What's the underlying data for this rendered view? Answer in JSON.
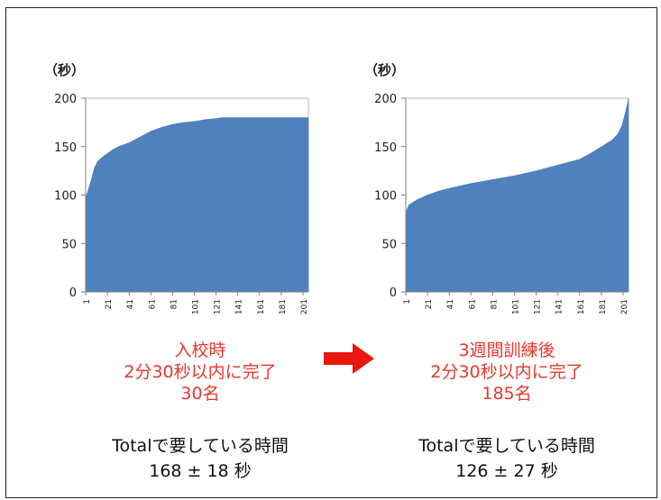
{
  "chart_data": [
    {
      "type": "area",
      "unit_label": "（秒）",
      "ylim": [
        0,
        200
      ],
      "yticks": [
        0,
        50,
        100,
        150,
        200
      ],
      "xtick_labels": [
        "1",
        "21",
        "41",
        "61",
        "81",
        "101",
        "121",
        "141",
        "161",
        "181",
        "201"
      ],
      "x_count": 206,
      "color": "#4f81bd",
      "grid": false,
      "curve_points": [
        [
          1,
          97
        ],
        [
          3,
          104
        ],
        [
          6,
          115
        ],
        [
          9,
          128
        ],
        [
          12,
          135
        ],
        [
          16,
          139
        ],
        [
          21,
          143
        ],
        [
          26,
          147
        ],
        [
          31,
          150
        ],
        [
          41,
          154
        ],
        [
          51,
          160
        ],
        [
          61,
          166
        ],
        [
          71,
          170
        ],
        [
          81,
          173
        ],
        [
          91,
          175
        ],
        [
          101,
          176
        ],
        [
          111,
          178
        ],
        [
          121,
          179
        ],
        [
          126,
          180
        ],
        [
          141,
          180
        ],
        [
          161,
          180
        ],
        [
          181,
          180
        ],
        [
          206,
          180
        ]
      ],
      "caption": [
        "入校時",
        "2分30秒以内に完了",
        "30名"
      ],
      "stats_label": "Totalで要している時間",
      "stats_value": "168 ± 18 秒"
    },
    {
      "type": "area",
      "unit_label": "（秒）",
      "ylim": [
        0,
        200
      ],
      "yticks": [
        0,
        50,
        100,
        150,
        200
      ],
      "xtick_labels": [
        "1",
        "21",
        "41",
        "61",
        "81",
        "101",
        "121",
        "141",
        "161",
        "181",
        "201"
      ],
      "x_count": 206,
      "color": "#4f81bd",
      "grid": false,
      "curve_points": [
        [
          1,
          76
        ],
        [
          2,
          85
        ],
        [
          4,
          90
        ],
        [
          11,
          95
        ],
        [
          21,
          100
        ],
        [
          31,
          104
        ],
        [
          41,
          107
        ],
        [
          61,
          112
        ],
        [
          81,
          116
        ],
        [
          101,
          120
        ],
        [
          121,
          125
        ],
        [
          141,
          131
        ],
        [
          161,
          137
        ],
        [
          171,
          143
        ],
        [
          181,
          150
        ],
        [
          191,
          157
        ],
        [
          196,
          163
        ],
        [
          200,
          172
        ],
        [
          203,
          185
        ],
        [
          206,
          200
        ]
      ],
      "caption": [
        "3週間訓練後",
        "2分30秒以内に完了",
        "185名"
      ],
      "stats_label": "Totalで要している時間",
      "stats_value": "126 ± 27 秒"
    }
  ],
  "arrow_color": "#e8170f"
}
